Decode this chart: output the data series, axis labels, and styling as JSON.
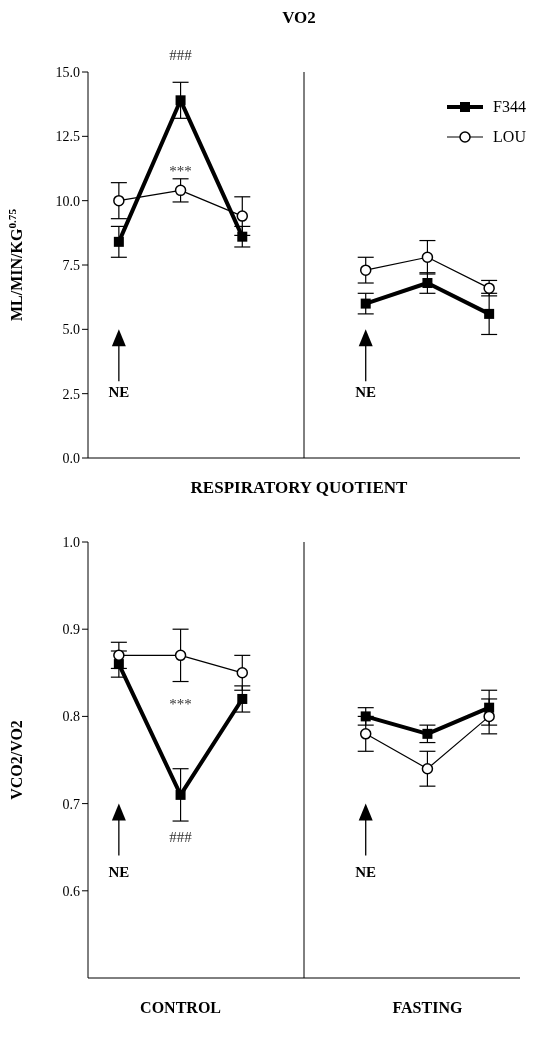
{
  "chart_data": [
    {
      "type": "line",
      "title": "VO2",
      "ylabel": "ML/MIN/KG$^{0.75}$",
      "categories": [
        null,
        null,
        null,
        null,
        null,
        null,
        null
      ],
      "ylim": [
        0,
        15
      ],
      "yticks": [
        {
          "value": 0,
          "label": "0.0"
        },
        {
          "value": 2.5,
          "label": "2.5"
        },
        {
          "value": 5,
          "label": "5.0"
        },
        {
          "value": 7.5,
          "label": "7.5"
        },
        {
          "value": 10,
          "label": "10.0"
        },
        {
          "value": 12.5,
          "label": "12.5"
        },
        {
          "value": 15,
          "label": "15.0"
        }
      ],
      "tick_labels": "y",
      "legend": "top right",
      "series": [
        {
          "name": "F344",
          "color": "#000000",
          "marker": "square",
          "values": [
            8.4,
            13.9,
            8.6,
            null,
            6.0,
            6.8,
            5.6
          ],
          "errors": [
            0.6,
            0.7,
            0.4,
            null,
            0.4,
            0.4,
            0.8
          ]
        },
        {
          "name": "LOU",
          "color": "#000000",
          "marker": "circle",
          "values": [
            10.0,
            10.4,
            9.4,
            null,
            7.3,
            7.8,
            6.6
          ],
          "errors": [
            0.7,
            0.45,
            0.75,
            null,
            0.5,
            0.65,
            0.3
          ]
        }
      ],
      "annotations": [
        "###",
        "***",
        "NE",
        "NE"
      ]
    },
    {
      "type": "line",
      "title": "RESPIRATORY QUOTIENT",
      "ylabel": "VCO2/VO2",
      "categories": [
        null,
        "CONTROL",
        null,
        null,
        null,
        "FASTING",
        null
      ],
      "ylim": [
        0.5,
        1.0
      ],
      "yticks": [
        {
          "value": 0.6,
          "label": "0.6"
        },
        {
          "value": 0.7,
          "label": "0.7"
        },
        {
          "value": 0.8,
          "label": "0.8"
        },
        {
          "value": 0.9,
          "label": "0.9"
        },
        {
          "value": 1.0,
          "label": "1.0"
        }
      ],
      "legend": false,
      "series": [
        {
          "color": "#000000",
          "marker": "square",
          "values": [
            0.86,
            0.71,
            0.82,
            null,
            0.8,
            0.78,
            0.81
          ],
          "errors": [
            0.015,
            0.03,
            0.015,
            null,
            0.01,
            0.01,
            0.02
          ]
        },
        {
          "color": "#000000",
          "marker": "circle",
          "values": [
            0.87,
            0.87,
            0.85,
            null,
            0.78,
            0.74,
            0.8
          ],
          "errors": [
            0.015,
            0.03,
            0.02,
            null,
            0.02,
            0.02,
            0.02
          ]
        }
      ],
      "annotations": [
        "***",
        "###",
        "NE",
        "NE"
      ]
    }
  ]
}
